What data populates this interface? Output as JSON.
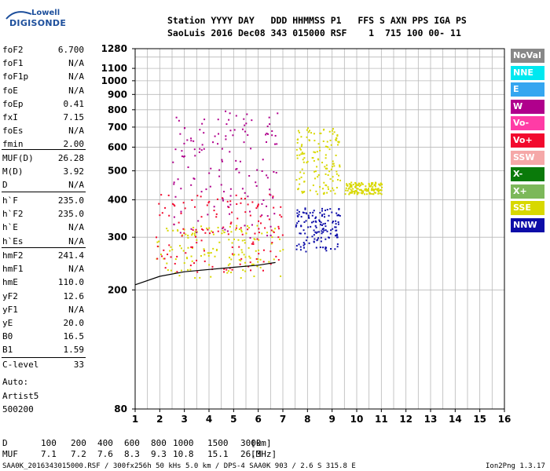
{
  "logo": {
    "top": "Lowell",
    "bottom": "DIGISONDE"
  },
  "header": {
    "line1": "Station YYYY DAY   DDD HHMMSS P1   FFS S AXN PPS IGA PS",
    "line2": "SaoLuis 2016 Dec08 343 015000 RSF    1  715 100 00- 11"
  },
  "params_group1": [
    {
      "label": "foF2",
      "value": "6.700"
    },
    {
      "label": "foF1",
      "value": "N/A"
    },
    {
      "label": "foF1p",
      "value": "N/A"
    },
    {
      "label": "foE",
      "value": "N/A"
    },
    {
      "label": "foEp",
      "value": "0.41"
    },
    {
      "label": "fxI",
      "value": "7.15"
    },
    {
      "label": "foEs",
      "value": "N/A"
    },
    {
      "label": "fmin",
      "value": "2.00"
    }
  ],
  "params_group2": [
    {
      "label": "MUF(D)",
      "value": "26.28"
    },
    {
      "label": "M(D)",
      "value": "3.92"
    },
    {
      "label": "D",
      "value": "N/A"
    }
  ],
  "params_group3": [
    {
      "label": "h`F",
      "value": "235.0"
    },
    {
      "label": "h`F2",
      "value": "235.0"
    },
    {
      "label": "h`E",
      "value": "N/A"
    },
    {
      "label": "h`Es",
      "value": "N/A"
    }
  ],
  "params_group4": [
    {
      "label": "hmF2",
      "value": "241.4"
    },
    {
      "label": "hmF1",
      "value": "N/A"
    },
    {
      "label": "hmE",
      "value": "110.0"
    },
    {
      "label": "yF2",
      "value": "12.6"
    },
    {
      "label": "yF1",
      "value": "N/A"
    },
    {
      "label": "yE",
      "value": "20.0"
    },
    {
      "label": "B0",
      "value": "16.5"
    },
    {
      "label": "B1",
      "value": "1.59"
    }
  ],
  "c_level": {
    "label": "C-level",
    "value": "33"
  },
  "auto_lines": [
    "Auto:",
    "Artist5",
    "500200"
  ],
  "legend": [
    {
      "label": "NoVal",
      "bg": "#888888",
      "fg": "#ffffff"
    },
    {
      "label": "NNE",
      "bg": "#00e8f0",
      "fg": "#ffffff"
    },
    {
      "label": "E",
      "bg": "#35a6f0",
      "fg": "#ffffff"
    },
    {
      "label": "W",
      "bg": "#b0008c",
      "fg": "#ffffff"
    },
    {
      "label": "Vo-",
      "bg": "#ff3ca6",
      "fg": "#ffffff"
    },
    {
      "label": "Vo+",
      "bg": "#f20a2e",
      "fg": "#ffffff"
    },
    {
      "label": "SSW",
      "bg": "#f5a8a8",
      "fg": "#ffffff"
    },
    {
      "label": "X-",
      "bg": "#0a7a0a",
      "fg": "#ffffff"
    },
    {
      "label": "X+",
      "bg": "#7cb85a",
      "fg": "#ffffff"
    },
    {
      "label": "SSE",
      "bg": "#d8d800",
      "fg": "#ffffff"
    },
    {
      "label": "NNW",
      "bg": "#0d0da8",
      "fg": "#ffffff"
    }
  ],
  "chart_data": {
    "type": "scatter",
    "title": "",
    "xlabel": "",
    "ylabel": "",
    "xlim": [
      1,
      16
    ],
    "ylim": [
      80,
      1280
    ],
    "y_scale": "log",
    "grid": true,
    "x_ticks": [
      "1",
      "2",
      "3",
      "4",
      "5",
      "6",
      "7",
      "8",
      "9",
      "10",
      "11",
      "12",
      "13",
      "14",
      "15",
      "16"
    ],
    "y_ticks": [
      1280,
      1100,
      1000,
      900,
      800,
      700,
      600,
      500,
      400,
      300,
      200,
      80
    ],
    "trace_curve": {
      "name": "h'F trace",
      "x": [
        1.0,
        2.0,
        3.0,
        4.0,
        5.0,
        6.0,
        6.7
      ],
      "y": [
        208,
        222,
        230,
        234,
        238,
        242,
        247
      ]
    },
    "echo_clusters": [
      {
        "x_range": [
          1.8,
          7.0
        ],
        "y_range": [
          220,
          330
        ],
        "color": "#d8d800"
      },
      {
        "x_range": [
          1.8,
          7.0
        ],
        "y_range": [
          230,
          420
        ],
        "color": "#f20a2e"
      },
      {
        "x_range": [
          2.5,
          6.8
        ],
        "y_range": [
          300,
          800
        ],
        "color": "#b0008c"
      },
      {
        "x_range": [
          7.5,
          9.3
        ],
        "y_range": [
          270,
          380
        ],
        "color": "#0d0da8"
      },
      {
        "x_range": [
          7.5,
          9.3
        ],
        "y_range": [
          420,
          700
        ],
        "color": "#d8d800"
      },
      {
        "x_range": [
          9.5,
          11.0
        ],
        "y_range": [
          420,
          460
        ],
        "color": "#d8d800"
      }
    ]
  },
  "d_row": {
    "label": "D",
    "values": [
      "100",
      "200",
      "400",
      "600",
      "800",
      "1000",
      "1500",
      "3000"
    ],
    "unit": "[km]"
  },
  "muf_row": {
    "label": "MUF",
    "values": [
      "7.1",
      "7.2",
      "7.6",
      "8.3",
      "9.3",
      "10.8",
      "15.1",
      "26.3"
    ],
    "unit": "[MHz]"
  },
  "footer": {
    "file": "SAA0K_2016343015000.RSF / 300fx256h 50 kHs 5.0 km / DPS-4 SAA0K 903 / 2.6 S 315.8 E",
    "version": "Ion2Png 1.3.17"
  }
}
